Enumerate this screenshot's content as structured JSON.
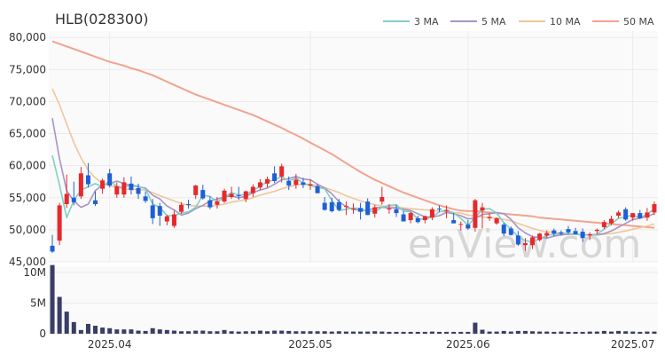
{
  "chart_data": {
    "type": "candlestick",
    "title": "HLB(028300)",
    "watermark": "enView.com",
    "colors": {
      "up": "#e8282b",
      "down": "#1f5fd6",
      "volume": "#3a3d66",
      "ma3": "#7fd0c4",
      "ma5": "#a893c8",
      "ma10": "#eec79a",
      "ma50": "#f2a38e",
      "grid": "#ebebeb",
      "plot_bg": "#fafafa"
    },
    "legend": [
      {
        "key": "ma3",
        "label": "3 MA"
      },
      {
        "key": "ma5",
        "label": "5 MA"
      },
      {
        "key": "ma10",
        "label": "10 MA"
      },
      {
        "key": "ma50",
        "label": "50 MA"
      }
    ],
    "price_axis": {
      "min": 45000,
      "max": 81000,
      "ticks": [
        "80,000",
        "75,000",
        "70,000",
        "65,000",
        "60,000",
        "55,000",
        "50,000",
        "45,000"
      ],
      "tick_values": [
        80000,
        75000,
        70000,
        65000,
        60000,
        55000,
        50000,
        45000
      ]
    },
    "volume_axis": {
      "min": 0,
      "max": 11000000,
      "ticks": [
        "10M",
        "5M",
        "0"
      ],
      "tick_values": [
        10000000,
        5000000,
        0
      ]
    },
    "x_axis": {
      "labels": [
        {
          "index": 8,
          "text": "2025.04"
        },
        {
          "index": 36,
          "text": "2025.05"
        },
        {
          "index": 58,
          "text": "2025.06"
        },
        {
          "index": 81,
          "text": "2025.07"
        }
      ]
    },
    "candles": [
      [
        47500,
        49200,
        46400,
        46600
      ],
      [
        48300,
        54200,
        47600,
        53800
      ],
      [
        54000,
        58600,
        53400,
        55600
      ],
      [
        55000,
        57500,
        53800,
        54300
      ],
      [
        55200,
        59800,
        54800,
        58800
      ],
      [
        58500,
        60400,
        56600,
        57100
      ],
      [
        54600,
        56000,
        53700,
        54000
      ],
      [
        56400,
        58000,
        55600,
        57700
      ],
      [
        58800,
        59500,
        56600,
        56900
      ],
      [
        55500,
        57400,
        55000,
        56800
      ],
      [
        55500,
        58200,
        55000,
        57400
      ],
      [
        57200,
        58300,
        55500,
        56200
      ],
      [
        56500,
        57200,
        54800,
        55600
      ],
      [
        55200,
        56000,
        54200,
        54500
      ],
      [
        53800,
        54800,
        50900,
        51800
      ],
      [
        53700,
        54200,
        50600,
        52200
      ],
      [
        51300,
        52300,
        50700,
        52100
      ],
      [
        50600,
        53000,
        50300,
        52400
      ],
      [
        52800,
        54300,
        52500,
        53900
      ],
      [
        54000,
        54700,
        53300,
        53900
      ],
      [
        55400,
        57000,
        54800,
        56900
      ],
      [
        56200,
        57000,
        54700,
        54900
      ],
      [
        54600,
        55200,
        53200,
        53500
      ],
      [
        53900,
        55100,
        53300,
        54400
      ],
      [
        54400,
        56400,
        54200,
        56100
      ],
      [
        55100,
        56700,
        54800,
        55600
      ],
      [
        55400,
        56700,
        54700,
        55300
      ],
      [
        54800,
        56100,
        54300,
        56000
      ],
      [
        55700,
        57100,
        55100,
        56700
      ],
      [
        56600,
        57900,
        56200,
        57400
      ],
      [
        57200,
        58300,
        56600,
        57900
      ],
      [
        58800,
        59900,
        57300,
        57600
      ],
      [
        58300,
        60300,
        57400,
        59900
      ],
      [
        57600,
        58300,
        56200,
        56900
      ],
      [
        57000,
        58700,
        56400,
        57800
      ],
      [
        57400,
        58100,
        56500,
        57000
      ],
      [
        56900,
        57900,
        56200,
        57100
      ],
      [
        56800,
        57100,
        55700,
        55700
      ],
      [
        54200,
        55100,
        53000,
        53100
      ],
      [
        54300,
        55000,
        52700,
        52900
      ],
      [
        54300,
        54800,
        52900,
        53100
      ],
      [
        53600,
        54400,
        52300,
        53700
      ],
      [
        53200,
        54100,
        52500,
        53300
      ],
      [
        53400,
        54200,
        51600,
        52800
      ],
      [
        54400,
        54900,
        52300,
        52300
      ],
      [
        52500,
        53900,
        51900,
        53500
      ],
      [
        54400,
        56700,
        53900,
        55100
      ],
      [
        53200,
        54000,
        52500,
        53300
      ],
      [
        53200,
        53900,
        52000,
        52600
      ],
      [
        52400,
        52900,
        51300,
        51300
      ],
      [
        51500,
        52800,
        51000,
        52600
      ],
      [
        51800,
        52200,
        51000,
        51200
      ],
      [
        51500,
        52200,
        51000,
        52100
      ],
      [
        51900,
        53500,
        51500,
        53200
      ],
      [
        53300,
        53800,
        52800,
        53200
      ],
      [
        53000,
        53800,
        51800,
        53000
      ],
      [
        51500,
        52600,
        51000,
        51000
      ],
      [
        50800,
        51300,
        49900,
        50900
      ],
      [
        50800,
        51500,
        50000,
        50200
      ],
      [
        50300,
        54800,
        49700,
        54600
      ],
      [
        53000,
        54200,
        50200,
        53500
      ],
      [
        51800,
        52600,
        51400,
        52000
      ],
      [
        51000,
        51900,
        50800,
        51800
      ],
      [
        50800,
        51100,
        49000,
        49400
      ],
      [
        50200,
        50500,
        49100,
        49200
      ],
      [
        49100,
        49800,
        47500,
        47700
      ],
      [
        47600,
        48700,
        46700,
        47900
      ],
      [
        47600,
        49100,
        47000,
        48800
      ],
      [
        48400,
        49500,
        48200,
        49400
      ],
      [
        49100,
        49900,
        48700,
        49500
      ],
      [
        49900,
        50200,
        49000,
        49400
      ],
      [
        49600,
        49900,
        49100,
        49400
      ],
      [
        50100,
        50600,
        49300,
        49600
      ],
      [
        49800,
        50300,
        49300,
        49300
      ],
      [
        49700,
        50200,
        48100,
        48700
      ],
      [
        49100,
        49600,
        48400,
        49300
      ],
      [
        49800,
        50200,
        49300,
        50000
      ],
      [
        50400,
        51500,
        50100,
        51200
      ],
      [
        51000,
        52200,
        50700,
        51700
      ],
      [
        52200,
        53000,
        51800,
        52700
      ],
      [
        53200,
        53500,
        51400,
        51600
      ],
      [
        51900,
        52600,
        51400,
        52600
      ],
      [
        52600,
        53100,
        51700,
        51800
      ],
      [
        51900,
        53400,
        51400,
        52700
      ],
      [
        52700,
        54400,
        52300,
        54000
      ]
    ],
    "volume": [
      11200000,
      6000000,
      3600000,
      1900000,
      600000,
      1600000,
      1300000,
      1000000,
      900000,
      700000,
      700000,
      700000,
      500000,
      450000,
      900000,
      700000,
      600000,
      500000,
      400000,
      400000,
      500000,
      500000,
      400000,
      400000,
      600000,
      400000,
      350000,
      400000,
      400000,
      500000,
      400000,
      500000,
      500000,
      450000,
      400000,
      400000,
      400000,
      400000,
      400000,
      350000,
      400000,
      350000,
      350000,
      350000,
      350000,
      400000,
      350000,
      300000,
      300000,
      300000,
      300000,
      300000,
      300000,
      350000,
      300000,
      300000,
      300000,
      300000,
      300000,
      1800000,
      650000,
      350000,
      350000,
      450000,
      350000,
      450000,
      450000,
      400000,
      350000,
      350000,
      300000,
      350000,
      300000,
      300000,
      300000,
      350000,
      350000,
      450000,
      350000,
      450000,
      400000,
      350000,
      300000,
      350000,
      350000
    ],
    "ma3": [
      61600,
      57000,
      51900,
      54600,
      56200,
      56700,
      57200,
      56700,
      57700,
      56700,
      56600,
      57000,
      56800,
      56400,
      54000,
      53500,
      52200,
      52200,
      52600,
      52800,
      53500,
      55400,
      55200,
      54300,
      55100,
      55800,
      55400,
      55500,
      56100,
      56800,
      57500,
      57800,
      58300,
      57600,
      58100,
      57200,
      56900,
      56600,
      56400,
      54600,
      53000,
      53200,
      53400,
      53300,
      52900,
      52800,
      53500,
      53800,
      53900,
      52900,
      52800,
      51700,
      51600,
      52000,
      52800,
      53100,
      52600,
      51800,
      50700,
      51900,
      53200,
      53300,
      52600,
      51100,
      50100,
      48900,
      48300,
      48100,
      48600,
      49100,
      49300,
      49400,
      49400,
      49300,
      49200,
      49200,
      49300,
      50100,
      50900,
      51800,
      52000,
      52300,
      51900,
      52400,
      53300
    ],
    "ma5": [
      67400,
      61100,
      56100,
      54500,
      53500,
      54000,
      56100,
      57000,
      57200,
      57600,
      57200,
      56900,
      56700,
      56500,
      55400,
      54800,
      53700,
      53100,
      52300,
      52600,
      53300,
      53800,
      54500,
      54800,
      55100,
      55300,
      55000,
      55200,
      55800,
      56200,
      56500,
      57100,
      57800,
      58000,
      58300,
      57900,
      57800,
      57100,
      56500,
      55600,
      54400,
      53600,
      53200,
      53000,
      53000,
      53400,
      53500,
      53400,
      53400,
      53200,
      53000,
      52500,
      52000,
      52000,
      52200,
      52700,
      52500,
      52200,
      51700,
      51800,
      52400,
      52500,
      52700,
      52500,
      51600,
      50300,
      49500,
      48900,
      48800,
      48700,
      49000,
      49200,
      49300,
      49300,
      49200,
      49200,
      49200,
      49400,
      49800,
      50400,
      51000,
      51600,
      51800,
      52100,
      52500
    ],
    "ma10": [
      72000,
      69500,
      66500,
      63600,
      61200,
      59300,
      58100,
      57200,
      56900,
      56600,
      56400,
      56300,
      56300,
      56200,
      55800,
      55300,
      54900,
      54500,
      54100,
      53800,
      53700,
      53700,
      53700,
      53800,
      54000,
      54300,
      54500,
      54700,
      55000,
      55400,
      55700,
      56000,
      56400,
      56700,
      57000,
      57100,
      57100,
      56900,
      56600,
      56200,
      55800,
      55300,
      54900,
      54500,
      54200,
      53900,
      53700,
      53600,
      53500,
      53400,
      53300,
      53200,
      53100,
      53000,
      52900,
      52800,
      52700,
      52600,
      52300,
      52100,
      52000,
      51900,
      51800,
      51600,
      51400,
      51000,
      50600,
      50200,
      49900,
      49700,
      49600,
      49500,
      49400,
      49300,
      49200,
      49200,
      49200,
      49300,
      49400,
      49600,
      49800,
      50100,
      50300,
      50600,
      50900
    ],
    "ma50": [
      79400,
      79000,
      78600,
      78200,
      77800,
      77400,
      77000,
      76600,
      76200,
      75900,
      75600,
      75200,
      74900,
      74500,
      74100,
      73600,
      73100,
      72600,
      72100,
      71600,
      71100,
      70700,
      70300,
      69900,
      69500,
      69100,
      68700,
      68300,
      67900,
      67400,
      66900,
      66400,
      65900,
      65300,
      64800,
      64200,
      63600,
      63000,
      62400,
      61800,
      61100,
      60400,
      59700,
      59000,
      58400,
      57800,
      57300,
      56800,
      56300,
      55800,
      55400,
      55000,
      54600,
      54200,
      53800,
      53500,
      53200,
      53000,
      52900,
      52900,
      52800,
      52700,
      52600,
      52500,
      52400,
      52300,
      52200,
      52100,
      51900,
      51800,
      51700,
      51600,
      51500,
      51400,
      51300,
      51200,
      51100,
      51000,
      50900,
      50800,
      50700,
      50600,
      50500,
      50400,
      50300
    ]
  }
}
